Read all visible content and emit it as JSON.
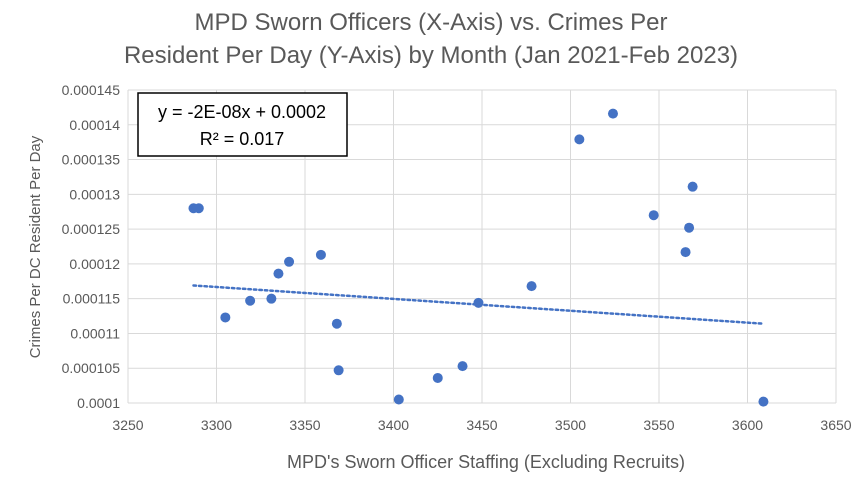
{
  "chart_data": {
    "type": "scatter",
    "title_lines": [
      "MPD Sworn Officers (X-Axis) vs. Crimes Per",
      "Resident Per Day (Y-Axis) by Month (Jan 2021-Feb 2023)"
    ],
    "xlabel": "MPD's Sworn Officer Staffing (Excluding Recruits)",
    "ylabel": "Crimes Per DC Resident Per Day",
    "xlim": [
      3250,
      3650
    ],
    "ylim": [
      0.0001,
      0.000145
    ],
    "x_ticks": [
      "3250",
      "3300",
      "3350",
      "3400",
      "3450",
      "3500",
      "3550",
      "3600",
      "3650"
    ],
    "y_ticks": [
      "0.0001",
      "0.000105",
      "0.00011",
      "0.000115",
      "0.00012",
      "0.000125",
      "0.00013",
      "0.000135",
      "0.00014",
      "0.000145"
    ],
    "grid": true,
    "marker_color": "#4472C4",
    "trendline": {
      "type": "linear",
      "color": "#4472C4",
      "style": "dotted",
      "equation": "y = -2E-08x + 0.0002",
      "r_squared": "R² = 0.017",
      "x_range": [
        3287,
        3609
      ],
      "y_range": [
        0.0001169,
        0.0001114
      ]
    },
    "points": [
      {
        "x": 3287,
        "y": 0.000128
      },
      {
        "x": 3290,
        "y": 0.000128
      },
      {
        "x": 3305,
        "y": 0.0001123
      },
      {
        "x": 3319,
        "y": 0.0001147
      },
      {
        "x": 3331,
        "y": 0.000115
      },
      {
        "x": 3335,
        "y": 0.0001186
      },
      {
        "x": 3341,
        "y": 0.0001203
      },
      {
        "x": 3359,
        "y": 0.0001213
      },
      {
        "x": 3368,
        "y": 0.0001114
      },
      {
        "x": 3369,
        "y": 0.0001047
      },
      {
        "x": 3403,
        "y": 0.0001005
      },
      {
        "x": 3425,
        "y": 0.0001036
      },
      {
        "x": 3439,
        "y": 0.0001053
      },
      {
        "x": 3448,
        "y": 0.0001144
      },
      {
        "x": 3478,
        "y": 0.0001168
      },
      {
        "x": 3505,
        "y": 0.0001379
      },
      {
        "x": 3524,
        "y": 0.0001416
      },
      {
        "x": 3547,
        "y": 0.000127
      },
      {
        "x": 3565,
        "y": 0.0001217
      },
      {
        "x": 3567,
        "y": 0.0001252
      },
      {
        "x": 3569,
        "y": 0.0001311
      },
      {
        "x": 3609,
        "y": 0.0001002
      }
    ]
  }
}
